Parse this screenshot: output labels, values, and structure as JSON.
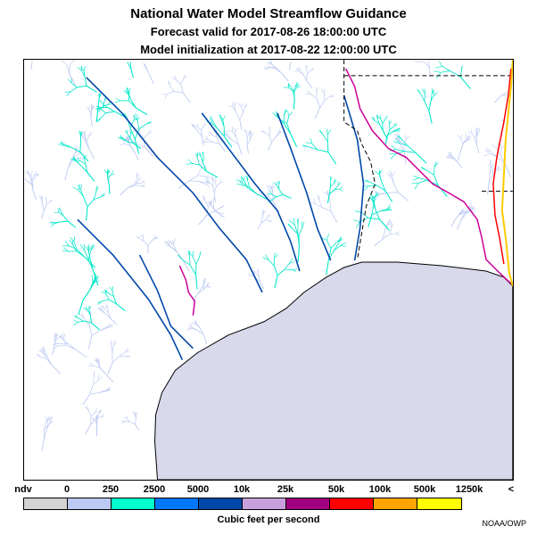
{
  "title": {
    "line1": "National Water Model Streamflow Guidance",
    "line2": "Forecast valid for 2017-08-26 18:00:00 UTC",
    "line3": "Model initialization at 2017-08-22 12:00:00 UTC"
  },
  "legend": {
    "tick_labels": [
      "ndv",
      "0",
      "250",
      "2500",
      "5000",
      "10k",
      "25k",
      "50k",
      "100k",
      "500k",
      "1250k",
      "<"
    ],
    "colors": [
      "#d3d3d3",
      "#bcc9f2",
      "#00ffcc",
      "#0077ff",
      "#0047a8",
      "#c8a0dc",
      "#a0007f",
      "#ff0000",
      "#ffa500",
      "#ffff00"
    ],
    "units_label": "Cubic feet per second"
  },
  "credit": "NOAA/OWP",
  "map_colors": {
    "ocean": "#d9d9ec",
    "land": "#ffffff",
    "coast": "#000000",
    "state_border": "#000000",
    "streams_low": "#bcc9f2",
    "streams_mid": "#00e6c8",
    "streams_high": "#0047a8",
    "streams_peak": "#cc0099"
  }
}
